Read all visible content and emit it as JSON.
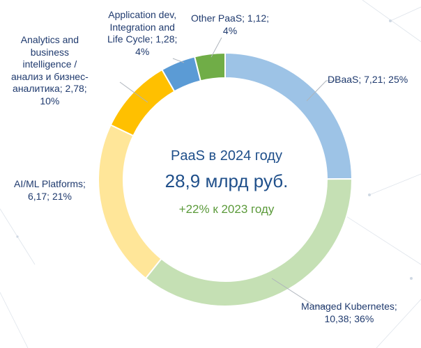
{
  "center": {
    "line1": "PaaS в 2024 году",
    "line2": "28,9 млрд руб.",
    "line3": "+22% к 2023 году"
  },
  "chart_data": {
    "type": "pie",
    "variant": "donut",
    "title": "",
    "series": [
      {
        "slices": [
          {
            "name": "DBaaS",
            "value": 7.21,
            "percent": 25,
            "color": "#9dc3e6",
            "label_lines": [
              "DBaaS;  7,21; 25%"
            ]
          },
          {
            "name": "Managed Kubernetes",
            "value": 10.38,
            "percent": 36,
            "color": "#c5e0b4",
            "label_lines": [
              "Managed Kubernetes;",
              "10,38; 36%"
            ]
          },
          {
            "name": "AI/ML Platforms",
            "value": 6.17,
            "percent": 21,
            "color": "#ffe699",
            "label_lines": [
              "AI/ML Platforms;",
              "6,17; 21%"
            ]
          },
          {
            "name": "Analytics and business intelligence / анализ и бизнес-аналитика",
            "value": 2.78,
            "percent": 10,
            "color": "#ffc000",
            "label_lines": [
              "Analytics and",
              "business",
              "intelligence /",
              "анализ и бизнес-",
              "аналитика;  2,78;",
              "10%"
            ]
          },
          {
            "name": "Application dev, Integration and Life Cycle",
            "value": 1.28,
            "percent": 4,
            "color": "#5b9bd5",
            "label_lines": [
              "Application dev,",
              "Integration and",
              "Life Cycle;  1,28;",
              "4%"
            ]
          },
          {
            "name": "Other PaaS",
            "value": 1.12,
            "percent": 4,
            "color": "#70ad47",
            "label_lines": [
              "Other PaaS;  1,12;",
              "4%"
            ]
          }
        ]
      }
    ],
    "legend": "none",
    "labels": "outside with leader lines"
  }
}
